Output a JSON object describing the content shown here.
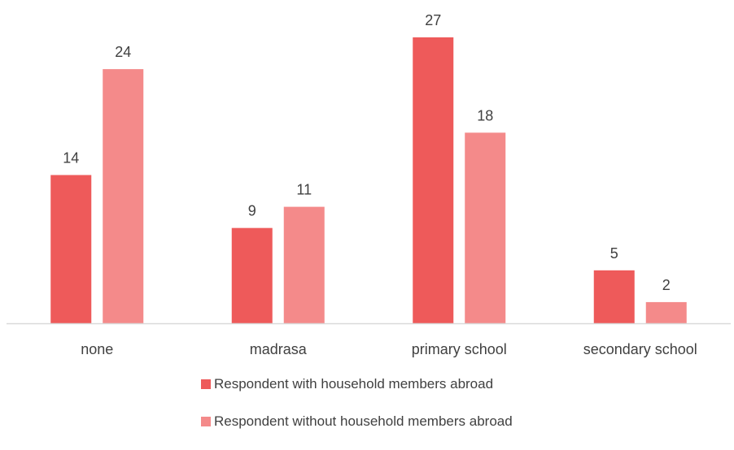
{
  "chart_data": {
    "type": "bar",
    "categories": [
      "none",
      "madrasa",
      "primary school",
      "secondary school"
    ],
    "series": [
      {
        "name": "Respondent with household members abroad",
        "values": [
          14,
          9,
          27,
          5
        ],
        "color": "#ee5a5a"
      },
      {
        "name": "Respondent without household members abroad",
        "values": [
          24,
          11,
          18,
          2
        ],
        "color": "#f48a8a"
      }
    ],
    "title": "",
    "xlabel": "",
    "ylabel": "",
    "ylim": [
      0,
      27
    ],
    "grid": false,
    "legend_position": "bottom"
  }
}
